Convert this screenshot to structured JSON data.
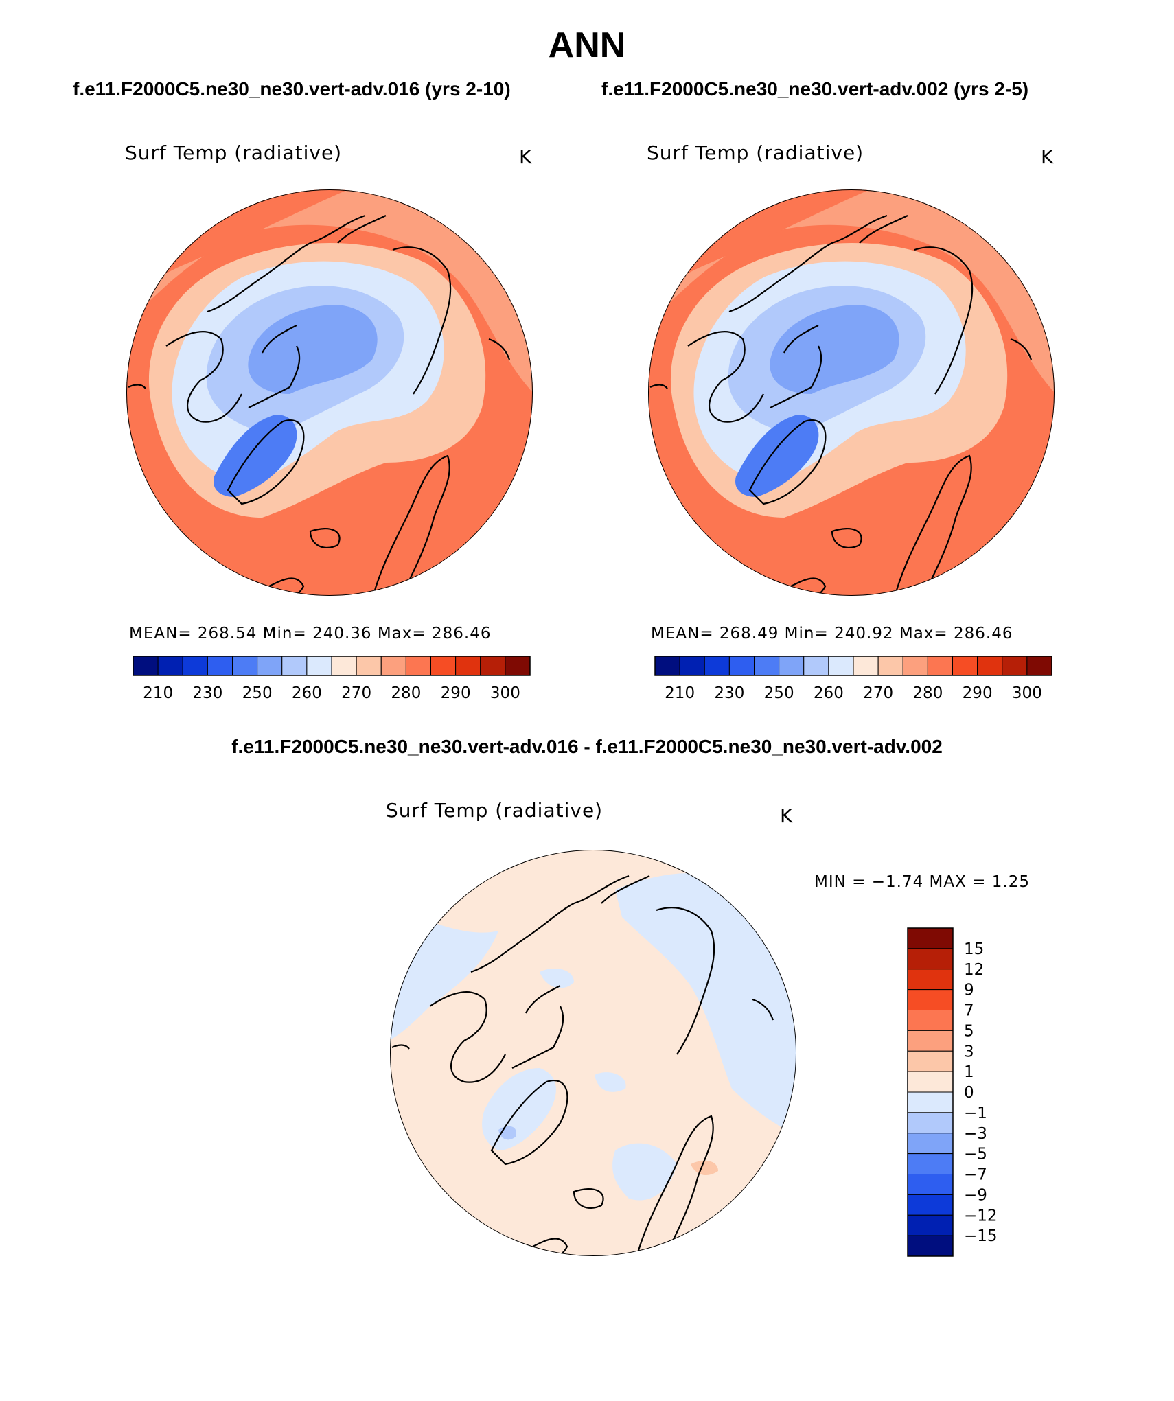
{
  "figure": {
    "title": "ANN",
    "left_run_title": "f.e11.F2000C5.ne30_ne30.vert-adv.016 (yrs 2-10)",
    "right_run_title": "f.e11.F2000C5.ne30_ne30.vert-adv.002 (yrs 2-5)",
    "diff_title": "f.e11.F2000C5.ne30_ne30.vert-adv.016 - f.e11.F2000C5.ne30_ne30.vert-adv.002"
  },
  "panels": [
    {
      "variable": "Surf Temp (radiative)",
      "units": "K",
      "stats": "MEAN=  268.54   Min=  240.36   Max=  286.46"
    },
    {
      "variable": "Surf Temp (radiative)",
      "units": "K",
      "stats": "MEAN=  268.49   Min=  240.92   Max=  286.46"
    },
    {
      "variable": "Surf Temp (radiative)",
      "units": "K",
      "stats": "MIN =   −1.74  MAX =     1.25"
    }
  ],
  "colorbar_abs": {
    "colors": [
      "#000e7f",
      "#0020b2",
      "#0d3ad9",
      "#2e5ef0",
      "#4d7cf5",
      "#7fa4f8",
      "#b1c9fb",
      "#dbe9fd",
      "#fde8d9",
      "#fcc7a9",
      "#fca07e",
      "#fc7651",
      "#f64d24",
      "#e0330e",
      "#b61f07",
      "#7f0a03"
    ],
    "labels": [
      "210",
      "230",
      "250",
      "260",
      "270",
      "280",
      "290",
      "300"
    ]
  },
  "colorbar_diff": {
    "colors": [
      "#7f0a03",
      "#b61f07",
      "#e0330e",
      "#f64d24",
      "#fc7651",
      "#fca07e",
      "#fcc7a9",
      "#fde8d9",
      "#dbe9fd",
      "#b1c9fb",
      "#7fa4f8",
      "#4d7cf5",
      "#2e5ef0",
      "#0d3ad9",
      "#0020b2",
      "#000e7f"
    ],
    "labels": [
      "15",
      "12",
      "9",
      "7",
      "5",
      "3",
      "1",
      "0",
      "−1",
      "−3",
      "−5",
      "−7",
      "−9",
      "−12",
      "−15"
    ]
  }
}
